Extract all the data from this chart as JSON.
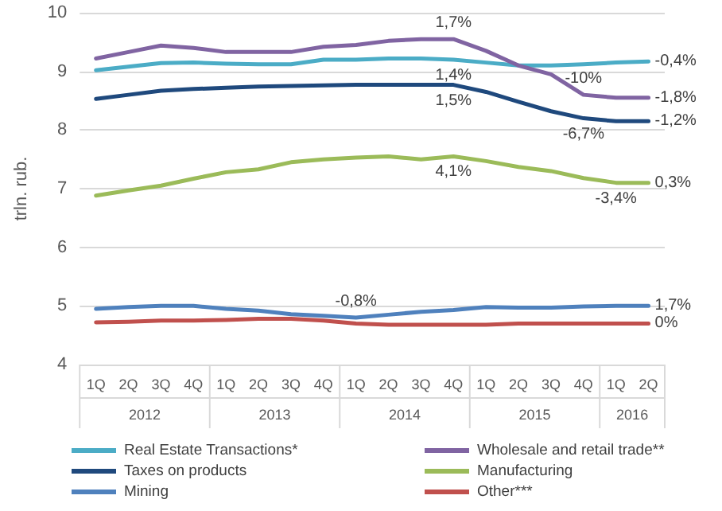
{
  "chart_data": {
    "type": "line",
    "ylabel": "trln. rub.",
    "categories": [
      "1Q",
      "2Q",
      "3Q",
      "4Q",
      "1Q",
      "2Q",
      "3Q",
      "4Q",
      "1Q",
      "2Q",
      "3Q",
      "4Q",
      "1Q",
      "2Q",
      "3Q",
      "4Q",
      "1Q",
      "2Q"
    ],
    "annotations": [
      "2012",
      "2013",
      "2014",
      "2015",
      "2016",
      "1,4%",
      "-0,4%",
      "1,7%",
      "-10%",
      "-1,8%",
      "1,5%",
      "-6,7%",
      "-1,2%",
      "4,1%",
      "-3,4%",
      "0,3%",
      "-0,8%",
      "1,7%",
      "0%"
    ],
    "ylim": [
      4,
      10
    ],
    "yticks": [
      4,
      5,
      6,
      7,
      8,
      9,
      10
    ],
    "grid": "y",
    "legend": "bottom",
    "marker": "none",
    "line_style": "solid",
    "series": [
      {
        "name": "Real Estate Transactions*",
        "color": "#4bacc6",
        "values": [
          9.02,
          9.08,
          9.14,
          9.15,
          9.13,
          9.12,
          9.12,
          9.2,
          9.2,
          9.22,
          9.22,
          9.2,
          9.15,
          9.1,
          9.1,
          9.12,
          9.15,
          9.17
        ]
      },
      {
        "name": "Wholesale and retail trade**",
        "color": "#8064a2",
        "values": [
          9.22,
          9.33,
          9.44,
          9.4,
          9.33,
          9.33,
          9.33,
          9.42,
          9.45,
          9.52,
          9.55,
          9.55,
          9.35,
          9.1,
          8.95,
          8.6,
          8.55,
          8.55
        ]
      },
      {
        "name": "Taxes on products",
        "color": "#1f497d",
        "values": [
          8.53,
          8.6,
          8.67,
          8.7,
          8.72,
          8.74,
          8.75,
          8.76,
          8.77,
          8.77,
          8.77,
          8.77,
          8.65,
          8.48,
          8.32,
          8.2,
          8.15,
          8.15
        ]
      },
      {
        "name": "Manufacturing",
        "color": "#9bbb59",
        "values": [
          6.88,
          6.97,
          7.05,
          7.17,
          7.28,
          7.33,
          7.45,
          7.5,
          7.53,
          7.55,
          7.5,
          7.55,
          7.47,
          7.37,
          7.3,
          7.18,
          7.1,
          7.1
        ]
      },
      {
        "name": "Mining",
        "color": "#4f81bd",
        "values": [
          4.95,
          4.98,
          5.0,
          5.0,
          4.95,
          4.92,
          4.86,
          4.83,
          4.8,
          4.85,
          4.9,
          4.93,
          4.98,
          4.97,
          4.97,
          4.99,
          5.0,
          5.0
        ]
      },
      {
        "name": "Other***",
        "color": "#c0504d",
        "values": [
          4.72,
          4.73,
          4.75,
          4.75,
          4.76,
          4.78,
          4.78,
          4.75,
          4.7,
          4.68,
          4.68,
          4.68,
          4.68,
          4.7,
          4.7,
          4.7,
          4.7,
          4.7
        ]
      }
    ]
  }
}
